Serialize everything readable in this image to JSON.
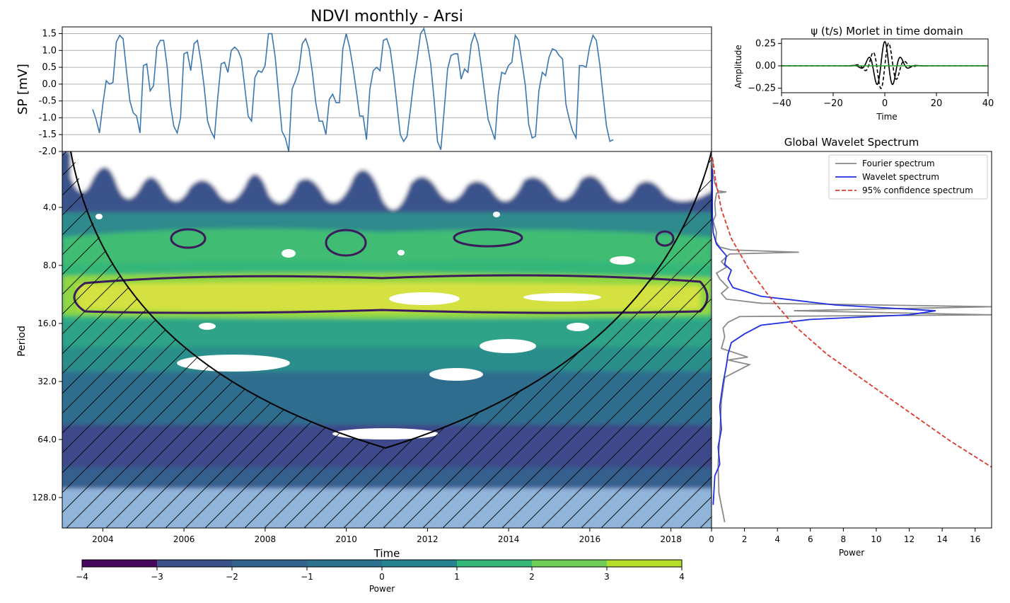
{
  "figure": {
    "title": "NDVI monthly - Arsi"
  },
  "chart_data": [
    {
      "id": "timeseries",
      "type": "line",
      "title": "NDVI monthly - Arsi",
      "xlabel": "",
      "ylabel": "SP [mV]",
      "xlim": [
        2003.0,
        2019.0
      ],
      "ylim": [
        -2.0,
        1.7
      ],
      "yticks": [
        "1.5",
        "1.0",
        "0.5",
        "0.0",
        "-0.5",
        "-1.0",
        "-1.5",
        "-2.0"
      ],
      "grid": true,
      "color": "#3a76af",
      "x_start": 2003.75,
      "x_step": 0.0833,
      "values": [
        -0.75,
        -1.05,
        -1.45,
        -0.6,
        0.1,
        0.0,
        0.05,
        1.25,
        1.45,
        1.35,
        0.4,
        -0.5,
        -0.85,
        -0.95,
        -1.45,
        0.55,
        0.6,
        -0.2,
        -0.05,
        1.1,
        1.3,
        1.3,
        0.55,
        -0.6,
        -1.25,
        -1.45,
        -1.0,
        0.9,
        0.95,
        0.4,
        1.2,
        1.3,
        0.7,
        -0.1,
        -1.1,
        -1.4,
        -1.6,
        -0.4,
        0.6,
        0.65,
        0.35,
        1.0,
        1.1,
        1.0,
        0.75,
        -0.1,
        -0.95,
        -1.1,
        0.2,
        0.4,
        0.35,
        0.55,
        1.5,
        1.5,
        0.8,
        -0.3,
        -1.4,
        -1.6,
        -2.0,
        -0.15,
        0.1,
        0.4,
        1.2,
        1.35,
        1.05,
        0.35,
        -0.55,
        -1.1,
        -1.1,
        -1.5,
        -0.45,
        -0.3,
        -0.55,
        -0.55,
        1.05,
        1.5,
        1.1,
        0.5,
        -0.2,
        -0.95,
        -0.95,
        -1.65,
        -0.15,
        0.4,
        0.5,
        0.4,
        1.3,
        1.35,
        1.05,
        0.3,
        -0.6,
        -1.5,
        -1.7,
        -1.55,
        -0.75,
        0.1,
        0.75,
        1.5,
        1.65,
        1.2,
        0.6,
        -0.45,
        -1.7,
        -1.95,
        -0.75,
        0.45,
        0.85,
        0.9,
        0.9,
        0.15,
        0.45,
        0.35,
        1.2,
        1.5,
        1.2,
        0.5,
        -0.3,
        -1.05,
        -1.35,
        -1.65,
        -0.3,
        0.35,
        0.3,
        0.55,
        0.65,
        1.45,
        1.3,
        0.65,
        -0.05,
        -1.2,
        -1.6,
        -1.55,
        -0.2,
        0.35,
        0.25,
        0.8,
        1.05,
        1.0,
        0.85,
        0.75,
        -0.6,
        -1.05,
        -1.4,
        -1.6,
        0.55,
        0.55,
        0.5,
        1.1,
        1.45,
        1.3,
        0.6,
        -0.35,
        -1.25,
        -1.7,
        -1.65
      ],
      "series": [
        {
          "name": "",
          "note": "series drawn from values"
        }
      ]
    },
    {
      "id": "morlet",
      "type": "line",
      "title": "ψ (t/s) Morlet in time domain",
      "xlabel": "Time",
      "ylabel": "Amplitude",
      "xlim": [
        -40,
        40
      ],
      "ylim": [
        -0.3,
        0.3
      ],
      "xticks": [
        "−40",
        "−20",
        "0",
        "20",
        "40"
      ],
      "yticks": [
        "0.25",
        "0.00",
        "−0.25"
      ],
      "series": [
        {
          "name": "",
          "style": "solid black",
          "function": "real part"
        },
        {
          "name": "",
          "style": "dashed black",
          "function": "imaginary part"
        },
        {
          "name": "",
          "style": "solid green",
          "function": "zero line"
        }
      ]
    },
    {
      "id": "wavelet",
      "type": "heatmap",
      "title": "",
      "xlabel": "Time",
      "ylabel": "Period",
      "xlim": [
        2003.0,
        2019.0
      ],
      "ylim_log2_period": [
        2.0,
        8.0
      ],
      "xticks": [
        "2004",
        "2006",
        "2008",
        "2010",
        "2012",
        "2014",
        "2016",
        "2018"
      ],
      "yticks": [
        "4.0",
        "8.0",
        "16.0",
        "32.0",
        "64.0",
        "128.0"
      ],
      "colormap": "viridis",
      "levels": [
        -4,
        -3,
        -2,
        -1,
        0,
        1,
        2,
        3,
        4
      ],
      "colorbar_label": "Power",
      "colorbar_ticks": [
        "−4",
        "−3",
        "−2",
        "−1",
        "0",
        "1",
        "2",
        "3",
        "4"
      ]
    },
    {
      "id": "global_spectrum",
      "type": "line",
      "title": "Global Wavelet Spectrum",
      "xlabel": "Power",
      "ylabel": "",
      "xlim": [
        0,
        17
      ],
      "xticks": [
        "0",
        "2",
        "4",
        "6",
        "8",
        "10",
        "12",
        "14",
        "16"
      ],
      "legend": "top-right",
      "series": [
        {
          "name": "Fourier spectrum",
          "color": "#8a8a8a",
          "style": "solid",
          "points": [
            [
              0.1,
              2.05
            ],
            [
              0.05,
              2.2
            ],
            [
              0.1,
              2.3
            ],
            [
              0.2,
              2.45
            ],
            [
              0.4,
              2.58
            ],
            [
              0.9,
              2.6
            ],
            [
              0.3,
              2.62
            ],
            [
              0.2,
              2.8
            ],
            [
              0.25,
              3.0
            ],
            [
              0.1,
              3.1
            ],
            [
              0.3,
              3.3
            ],
            [
              0.25,
              3.45
            ],
            [
              0.5,
              3.55
            ],
            [
              1.2,
              3.6
            ],
            [
              5.3,
              3.64
            ],
            [
              1.1,
              3.67
            ],
            [
              0.6,
              3.8
            ],
            [
              0.9,
              3.9
            ],
            [
              0.3,
              4.0
            ],
            [
              0.5,
              4.1
            ],
            [
              1.0,
              4.25
            ],
            [
              0.6,
              4.35
            ],
            [
              0.9,
              4.45
            ],
            [
              3.0,
              4.52
            ],
            [
              17.0,
              4.58
            ],
            [
              5.0,
              4.65
            ],
            [
              17.0,
              4.72
            ],
            [
              1.7,
              4.75
            ],
            [
              1.0,
              4.85
            ],
            [
              0.7,
              4.95
            ],
            [
              0.8,
              5.1
            ],
            [
              0.6,
              5.3
            ],
            [
              2.2,
              5.45
            ],
            [
              1.0,
              5.5
            ],
            [
              2.3,
              5.58
            ],
            [
              0.8,
              5.8
            ],
            [
              0.6,
              6.2
            ],
            [
              0.5,
              6.8
            ],
            [
              0.4,
              7.3
            ],
            [
              0.45,
              7.8
            ],
            [
              0.8,
              8.3
            ]
          ]
        },
        {
          "name": "Wavelet spectrum",
          "color": "#2030e0",
          "style": "solid",
          "points": [
            [
              0.05,
              2.2
            ],
            [
              0.05,
              3.0
            ],
            [
              0.1,
              3.3
            ],
            [
              0.3,
              3.5
            ],
            [
              0.9,
              3.7
            ],
            [
              0.8,
              3.85
            ],
            [
              1.2,
              3.95
            ],
            [
              1.0,
              4.1
            ],
            [
              1.3,
              4.25
            ],
            [
              3.0,
              4.4
            ],
            [
              7.5,
              4.55
            ],
            [
              13.6,
              4.65
            ],
            [
              12.0,
              4.72
            ],
            [
              6.0,
              4.8
            ],
            [
              3.0,
              4.9
            ],
            [
              2.0,
              5.05
            ],
            [
              1.2,
              5.2
            ],
            [
              1.0,
              5.4
            ],
            [
              0.9,
              5.6
            ],
            [
              0.7,
              5.9
            ],
            [
              0.5,
              6.3
            ],
            [
              0.6,
              6.7
            ],
            [
              0.4,
              7.0
            ],
            [
              0.5,
              7.3
            ],
            [
              0.2,
              7.5
            ],
            [
              0.1,
              8.0
            ]
          ]
        },
        {
          "name": "95% confidence spectrum",
          "color": "#e0392b",
          "style": "dashed",
          "points": [
            [
              0.05,
              2.0
            ],
            [
              0.25,
              2.4
            ],
            [
              0.6,
              2.9
            ],
            [
              1.2,
              3.4
            ],
            [
              2.2,
              3.9
            ],
            [
              3.5,
              4.4
            ],
            [
              5.0,
              4.9
            ],
            [
              7.0,
              5.4
            ],
            [
              9.5,
              5.9
            ],
            [
              12.0,
              6.4
            ],
            [
              14.5,
              6.9
            ],
            [
              17.0,
              7.35
            ]
          ]
        }
      ]
    }
  ]
}
